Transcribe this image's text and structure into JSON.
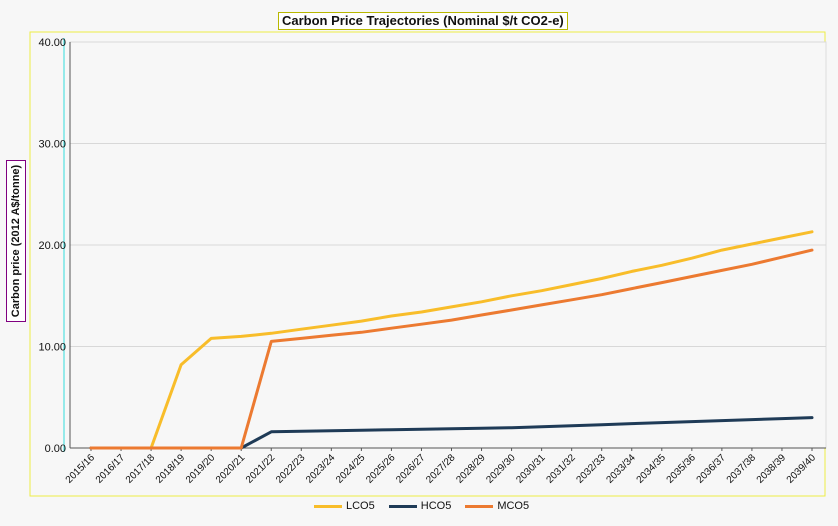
{
  "chart_data": {
    "type": "line",
    "title": "Carbon Price Trajectories (Nominal $/t CO2-e)",
    "ylabel": "Carbon price (2012 A$/tonne)",
    "xlabel": "",
    "ylim": [
      0,
      40
    ],
    "yticks": [
      "0.00",
      "10.00",
      "20.00",
      "30.00",
      "40.00"
    ],
    "grid": true,
    "legend_position": "bottom",
    "categories": [
      "2015/16",
      "2016/17",
      "2017/18",
      "2018/19",
      "2019/20",
      "2020/21",
      "2021/22",
      "2022/23",
      "2023/24",
      "2024/25",
      "2025/26",
      "2026/27",
      "2027/28",
      "2028/29",
      "2029/30",
      "2030/31",
      "2031/32",
      "2032/33",
      "2033/34",
      "2034/35",
      "2035/36",
      "2036/37",
      "2037/38",
      "2038/39",
      "2039/40"
    ],
    "series": [
      {
        "name": "LCO5",
        "color": "#f8bd2a",
        "values": [
          0,
          0,
          0,
          8.2,
          10.8,
          11.0,
          11.3,
          11.7,
          12.1,
          12.5,
          13.0,
          13.4,
          13.9,
          14.4,
          15.0,
          15.5,
          16.1,
          16.7,
          17.4,
          18.0,
          18.7,
          19.5,
          20.1,
          20.7,
          21.3
        ]
      },
      {
        "name": "HCO5",
        "color": "#1f3b57",
        "values": [
          0,
          0,
          0,
          0,
          0,
          0,
          1.6,
          1.65,
          1.7,
          1.75,
          1.8,
          1.85,
          1.9,
          1.95,
          2.0,
          2.1,
          2.2,
          2.3,
          2.4,
          2.5,
          2.6,
          2.7,
          2.8,
          2.9,
          3.0
        ]
      },
      {
        "name": "MCO5",
        "color": "#ec7a31",
        "values": [
          0,
          0,
          0,
          0,
          0,
          0,
          10.5,
          10.8,
          11.1,
          11.4,
          11.8,
          12.2,
          12.6,
          13.1,
          13.6,
          14.1,
          14.6,
          15.1,
          15.7,
          16.3,
          16.9,
          17.5,
          18.1,
          18.8,
          19.5
        ]
      }
    ]
  }
}
